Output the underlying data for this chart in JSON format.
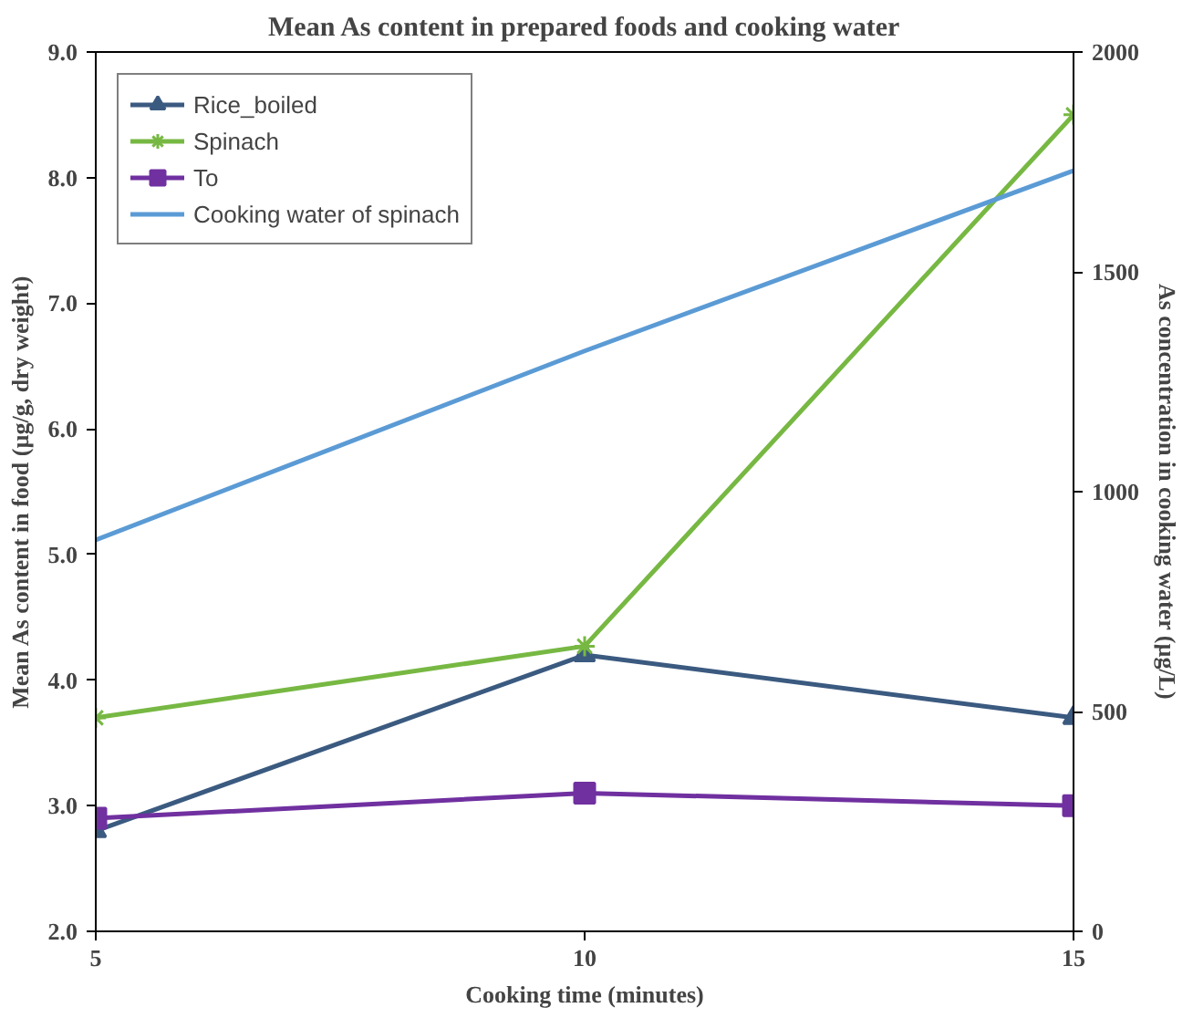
{
  "chart_data": {
    "type": "line",
    "title": "Mean As content in prepared foods and cooking water",
    "xlabel": "Cooking time (minutes)",
    "ylabel": "Mean As content in food (µg/g, dry weight)",
    "y2label": "As concentration in cooking water (µg/L)",
    "x": [
      5,
      10,
      15
    ],
    "xlim": [
      5,
      15
    ],
    "xticks": [
      5,
      10,
      15
    ],
    "ylim": [
      2,
      9
    ],
    "yticks": [
      {
        "value": 2,
        "label": "2.0"
      },
      {
        "value": 3,
        "label": "3.0"
      },
      {
        "value": 4,
        "label": "4.0"
      },
      {
        "value": 5,
        "label": "5.0"
      },
      {
        "value": 6,
        "label": "6.0"
      },
      {
        "value": 7,
        "label": "7.0"
      },
      {
        "value": 8,
        "label": "8.0"
      },
      {
        "value": 9,
        "label": "9.0"
      }
    ],
    "y2lim": [
      0,
      2000
    ],
    "y2ticks": [
      0,
      500,
      1000,
      1500,
      2000
    ],
    "grid": false,
    "legend": "top left",
    "series": [
      {
        "name": "Rice_boiled",
        "color": "#3b5a80",
        "marker": "triangle",
        "values": [
          2.8,
          4.2,
          3.7
        ]
      },
      {
        "name": "Spinach",
        "color": "#77b843",
        "marker": "cross",
        "values": [
          3.7,
          4.27,
          8.5
        ]
      },
      {
        "name": "To",
        "color": "#7030a0",
        "marker": "square",
        "values": [
          2.9,
          3.1,
          3.0
        ]
      },
      {
        "name": "Cooking water of spinach",
        "color": "#5b9bd5",
        "marker": "none",
        "axis": "y2",
        "values": [
          890,
          1320,
          1730
        ]
      }
    ]
  }
}
